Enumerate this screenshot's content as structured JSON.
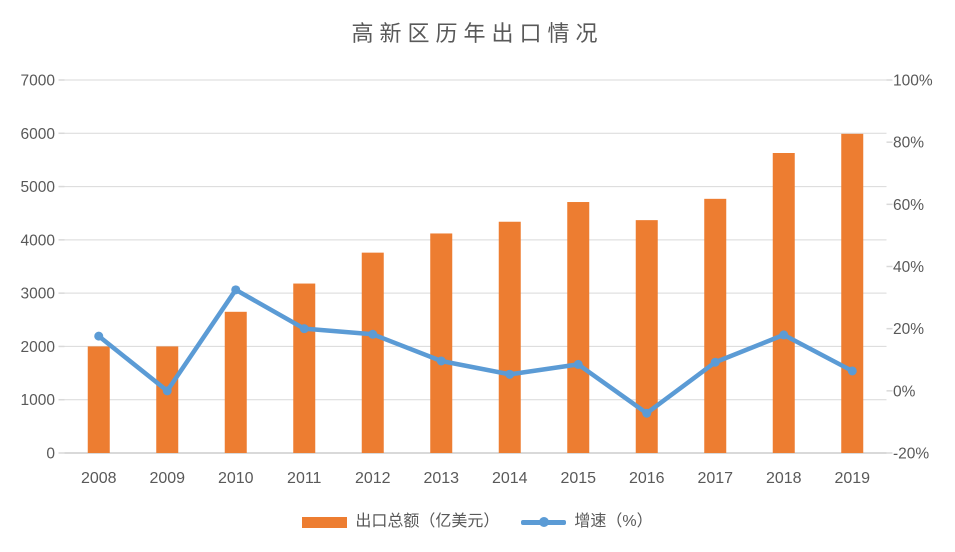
{
  "colors": {
    "bar": "#ED7D31",
    "line": "#5B9BD5",
    "gridline": "#D9D9D9",
    "axis_line": "#D9D9D9",
    "label": "#595959",
    "title": "#595959"
  },
  "chart_data": {
    "type": "bar",
    "subtype": "combo-bar-line",
    "title": "高新区历年出口情况",
    "categories": [
      "2008",
      "2009",
      "2010",
      "2011",
      "2012",
      "2013",
      "2014",
      "2015",
      "2016",
      "2017",
      "2018",
      "2019"
    ],
    "series": [
      {
        "name": "出口总额（亿美元）",
        "type": "bar",
        "axis": "left",
        "color": "#ED7D31",
        "values": [
          2000,
          2000,
          2650,
          3180,
          3760,
          4120,
          4340,
          4710,
          4370,
          4770,
          5630,
          5990
        ]
      },
      {
        "name": "增速（%）",
        "type": "line",
        "axis": "right",
        "color": "#5B9BD5",
        "values": [
          17.6,
          0.0,
          32.5,
          20.0,
          18.2,
          9.6,
          5.3,
          8.5,
          -7.2,
          9.2,
          18.0,
          6.4
        ]
      }
    ],
    "left_axis": {
      "min": 0,
      "max": 7000,
      "step": 1000,
      "ticks": [
        "7000",
        "6000",
        "5000",
        "4000",
        "3000",
        "2000",
        "1000",
        "0"
      ]
    },
    "right_axis": {
      "min": -20,
      "max": 100,
      "step": 20,
      "ticks": [
        "100%",
        "80%",
        "60%",
        "40%",
        "20%",
        "0%",
        "-20%"
      ]
    },
    "grid": true,
    "legend_position": "bottom"
  }
}
